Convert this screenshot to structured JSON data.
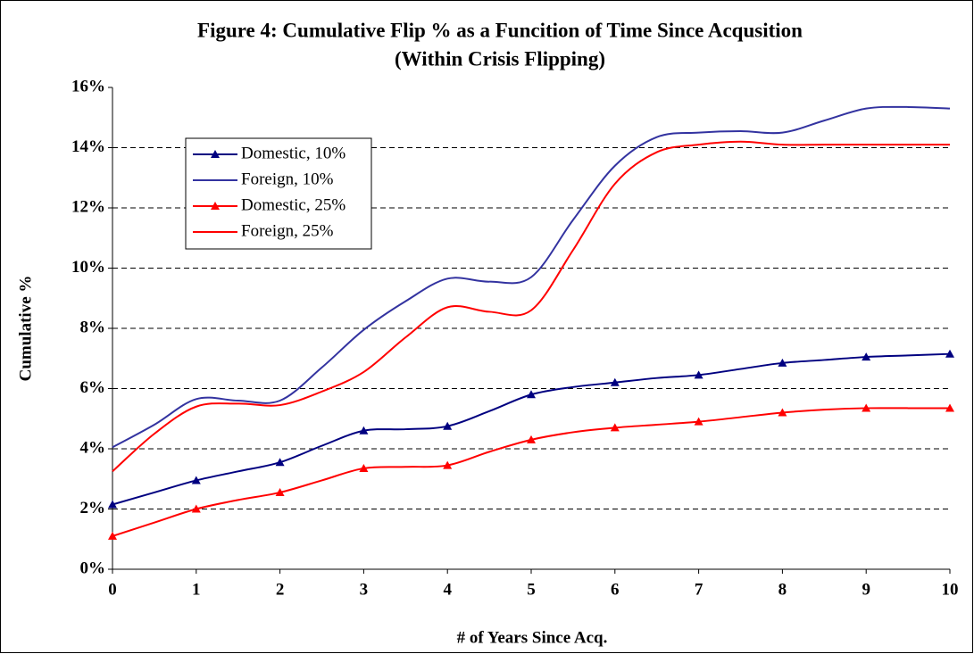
{
  "chart_data": {
    "type": "line",
    "title": "Figure 4: Cumulative Flip % as a Funcition of Time Since Acqusition",
    "subtitle": "(Within Crisis Flipping)",
    "x_label": "# of Years Since Acq.",
    "y_label": "Cumulative %",
    "x": [
      0,
      0.5,
      1,
      1.5,
      2,
      2.5,
      3,
      3.5,
      4,
      4.5,
      5,
      5.5,
      6,
      6.5,
      7,
      7.5,
      8,
      8.5,
      9,
      9.5,
      10
    ],
    "series": [
      {
        "name": "Domestic, 10%",
        "color": "#000080",
        "marker": "triangle",
        "values": [
          2.15,
          2.55,
          2.95,
          3.25,
          3.55,
          4.1,
          4.6,
          4.65,
          4.75,
          5.25,
          5.8,
          6.05,
          6.2,
          6.35,
          6.45,
          6.65,
          6.85,
          6.95,
          7.05,
          7.1,
          7.15
        ]
      },
      {
        "name": "Foreign, 10%",
        "color": "#3333a0",
        "values": [
          4.05,
          4.8,
          5.65,
          5.6,
          5.6,
          6.7,
          7.95,
          8.9,
          9.65,
          9.55,
          9.7,
          11.6,
          13.4,
          14.35,
          14.5,
          14.55,
          14.5,
          14.9,
          15.3,
          15.35,
          15.3
        ]
      },
      {
        "name": "Domestic, 25%",
        "color": "#ff0000",
        "marker": "triangle",
        "values": [
          1.1,
          1.55,
          2.0,
          2.3,
          2.55,
          2.95,
          3.35,
          3.4,
          3.45,
          3.9,
          4.3,
          4.55,
          4.7,
          4.8,
          4.9,
          5.05,
          5.2,
          5.3,
          5.35,
          5.35,
          5.35
        ]
      },
      {
        "name": "Foreign, 25%",
        "color": "#ff0000",
        "values": [
          3.25,
          4.5,
          5.4,
          5.5,
          5.45,
          5.9,
          6.55,
          7.7,
          8.7,
          8.55,
          8.6,
          10.6,
          12.8,
          13.85,
          14.1,
          14.2,
          14.1,
          14.1,
          14.1,
          14.1,
          14.1
        ]
      }
    ],
    "xlim": [
      0,
      10
    ],
    "xticks": [
      0,
      1,
      2,
      3,
      4,
      5,
      6,
      7,
      8,
      9,
      10
    ],
    "ylim": [
      0,
      16
    ],
    "yticks": [
      {
        "value": 0,
        "label": "0%"
      },
      {
        "value": 2,
        "label": "2%"
      },
      {
        "value": 4,
        "label": "4%"
      },
      {
        "value": 6,
        "label": "6%"
      },
      {
        "value": 8,
        "label": "8%"
      },
      {
        "value": 10,
        "label": "10%"
      },
      {
        "value": 12,
        "label": "12%"
      },
      {
        "value": 14,
        "label": "14%"
      },
      {
        "value": 16,
        "label": "16%"
      }
    ],
    "grid": true,
    "legend": "upper left"
  }
}
